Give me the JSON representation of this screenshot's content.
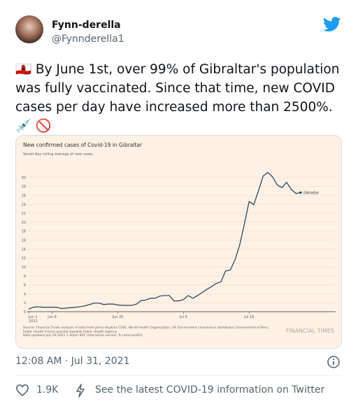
{
  "user": {
    "name": "Fynn-derella",
    "handle": "@Fynnderella1"
  },
  "tweet_text": "🇬🇮 By June 1st, over 99% of Gibraltar's population was fully vaccinated. Since that time, new COVID cases per day have increased more than 2500%. 💉 🚫",
  "chart_data": {
    "type": "line",
    "title": "New confirmed cases of Covid-19 in Gibraltar",
    "subtitle": "Seven-day rolling average of new cases",
    "x": [
      "2021-06-01",
      "2021-06-02",
      "2021-06-03",
      "2021-06-04",
      "2021-06-05",
      "2021-06-06",
      "2021-06-07",
      "2021-06-08",
      "2021-06-09",
      "2021-06-10",
      "2021-06-11",
      "2021-06-12",
      "2021-06-13",
      "2021-06-14",
      "2021-06-15",
      "2021-06-16",
      "2021-06-17",
      "2021-06-18",
      "2021-06-19",
      "2021-06-20",
      "2021-06-21",
      "2021-06-22",
      "2021-06-23",
      "2021-06-24",
      "2021-06-25",
      "2021-06-26",
      "2021-06-27",
      "2021-06-28",
      "2021-06-29",
      "2021-06-30",
      "2021-07-01",
      "2021-07-02",
      "2021-07-03",
      "2021-07-04",
      "2021-07-05",
      "2021-07-06",
      "2021-07-07",
      "2021-07-08",
      "2021-07-09",
      "2021-07-10",
      "2021-07-11",
      "2021-07-12",
      "2021-07-13",
      "2021-07-14",
      "2021-07-15",
      "2021-07-16",
      "2021-07-17",
      "2021-07-18",
      "2021-07-19",
      "2021-07-20",
      "2021-07-21",
      "2021-07-22",
      "2021-07-23",
      "2021-07-24",
      "2021-07-25",
      "2021-07-26",
      "2021-07-27",
      "2021-07-28",
      "2021-07-29"
    ],
    "series": [
      {
        "name": "Gibraltar",
        "color": "#1e3c5a",
        "values": [
          0.6,
          1.0,
          1.1,
          1.0,
          1.0,
          1.0,
          1.0,
          0.7,
          0.8,
          0.9,
          1.0,
          1.1,
          1.3,
          1.6,
          1.9,
          1.9,
          1.6,
          1.7,
          1.7,
          1.5,
          1.4,
          1.4,
          1.4,
          1.7,
          2.5,
          2.6,
          3.0,
          3.0,
          3.5,
          3.6,
          3.6,
          2.4,
          2.4,
          2.7,
          3.6,
          3.0,
          3.6,
          4.3,
          5.0,
          5.6,
          6.3,
          6.7,
          9.1,
          9.3,
          11.6,
          14.9,
          19.6,
          24.6,
          23.9,
          27.0,
          30.3,
          31.1,
          30.1,
          28.3,
          27.7,
          28.9,
          27.3,
          26.4,
          26.6
        ]
      }
    ],
    "xlim": [
      "2021-06-01",
      "2021-07-29"
    ],
    "xticks": [
      {
        "value": "2021-06-01",
        "label": "Jun 1\n2021"
      },
      {
        "value": "2021-06-06",
        "label": "Jun 6"
      },
      {
        "value": "2021-06-20",
        "label": "Jun 20"
      },
      {
        "value": "2021-07-04",
        "label": "Jul 4"
      },
      {
        "value": "2021-07-18",
        "label": "Jul 18"
      }
    ],
    "ylim": [
      0,
      32
    ],
    "yticks": [
      0,
      2,
      4,
      6,
      8,
      10,
      12,
      14,
      16,
      18,
      20,
      22,
      24,
      26,
      28,
      30
    ],
    "grid": true,
    "source": "Source: Financial Times analysis of data from Johns Hopkins CSSE, World Health Organization, UK Government coronavirus dashboard, Government of Peru, Public Health France and the Swedish Public Health Agency.",
    "updated": "Data updated July 29 2021 1.30pm BST. Interactive version: ft.com/covid19",
    "brand": "FINANCIAL TIMES"
  },
  "timestamp": "12:08 AM · Jul 31, 2021",
  "likes": "1.9K",
  "covid_link": "See the latest COVID-19 information on Twitter"
}
